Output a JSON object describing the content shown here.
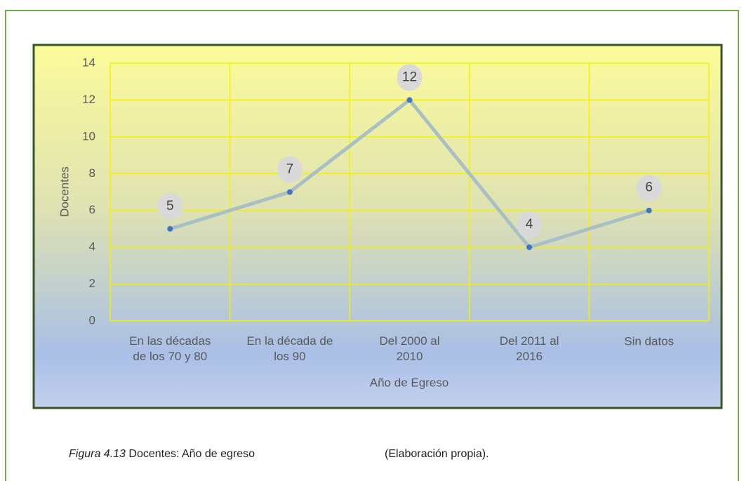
{
  "chart_data": {
    "type": "line",
    "x_label": "Año de Egreso",
    "y_label": "Docentes",
    "categories": [
      "En las décadas\nde los  70 y 80",
      "En la década de\nlos 90",
      "Del 2000 al\n2010",
      "Del 2011 al\n2016",
      "Sin datos"
    ],
    "series": [
      {
        "name": "Docentes",
        "color": "#a8c0c4",
        "marker_color": "#4472c4",
        "values": [
          5,
          7,
          12,
          4,
          6
        ]
      }
    ],
    "ylim": [
      0,
      14
    ],
    "yticks": [
      0,
      2,
      4,
      6,
      8,
      10,
      12,
      14
    ],
    "grid": true
  },
  "caption": {
    "figure": "Figura 4.13",
    "text": " Docentes: Año de egreso",
    "source": "(Elaboración propia)."
  }
}
